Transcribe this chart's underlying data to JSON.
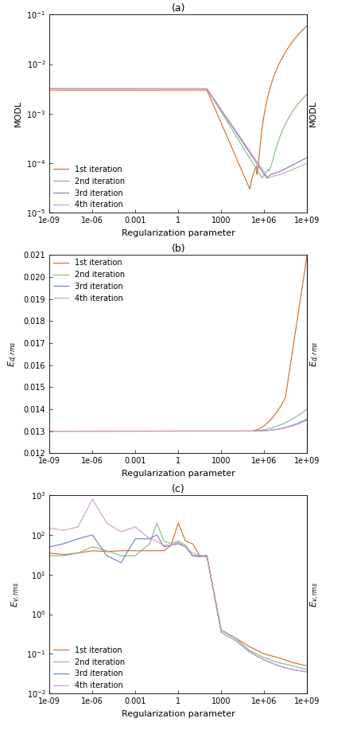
{
  "title_a": "(a)",
  "title_b": "(b)",
  "title_c": "(c)",
  "xlabel": "Regularization parameter",
  "ylabel_a": "MODL",
  "ylabel_b": "E_{d,rms}",
  "ylabel_c": "E_{v,rms}",
  "legend_labels": [
    "1st iteration",
    "2nd iteration",
    "3rd iteration",
    "4th iteration"
  ],
  "colors": [
    "#d2691e",
    "#7cb97c",
    "#7777bb",
    "#cc99cc"
  ],
  "lw": 0.8,
  "xtick_labels": [
    "1e-09",
    "1e-06",
    "0.001",
    "1",
    "1000",
    "1e+06",
    "1e+09"
  ],
  "xtick_vals": [
    1e-09,
    1e-06,
    0.001,
    1,
    1000.0,
    1000000.0,
    1000000000.0
  ],
  "figsize": [
    4.44,
    9.17
  ],
  "dpi": 100
}
